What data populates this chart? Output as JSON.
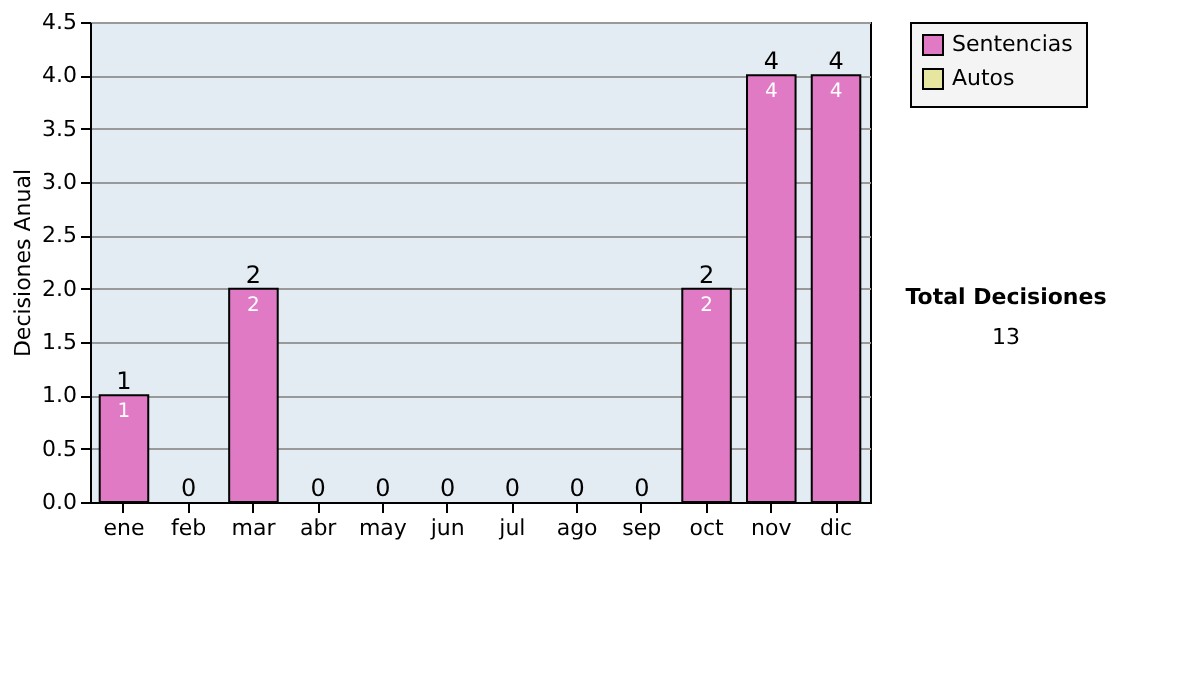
{
  "chart_data": {
    "type": "bar",
    "ylabel": "Decisiones Anual",
    "categories": [
      "ene",
      "feb",
      "mar",
      "abr",
      "may",
      "jun",
      "jul",
      "ago",
      "sep",
      "oct",
      "nov",
      "dic"
    ],
    "series": [
      {
        "name": "Sentencias",
        "color": "#e07ac4",
        "values": [
          1,
          0,
          2,
          0,
          0,
          0,
          0,
          0,
          0,
          2,
          4,
          4
        ],
        "value_labels": [
          "1",
          null,
          "2",
          null,
          null,
          null,
          null,
          null,
          null,
          "2",
          "4",
          "4"
        ]
      },
      {
        "name": "Autos",
        "color": "#e6e6a0",
        "values": [
          0,
          0,
          0,
          0,
          0,
          0,
          0,
          0,
          0,
          0,
          0,
          0
        ]
      }
    ],
    "stacked": true,
    "totals": [
      "1",
      "0",
      "2",
      "0",
      "0",
      "0",
      "0",
      "0",
      "0",
      "2",
      "4",
      "4"
    ],
    "ylim": [
      0,
      4.5
    ],
    "yticks": [
      {
        "value": 0,
        "label": "0.0"
      },
      {
        "value": 0.5,
        "label": "0.5"
      },
      {
        "value": 1,
        "label": "1.0"
      },
      {
        "value": 1.5,
        "label": "1.5"
      },
      {
        "value": 2,
        "label": "2.0"
      },
      {
        "value": 2.5,
        "label": "2.5"
      },
      {
        "value": 3,
        "label": "3.0"
      },
      {
        "value": 3.5,
        "label": "3.5"
      },
      {
        "value": 4,
        "label": "4.0"
      },
      {
        "value": 4.5,
        "label": "4.5"
      }
    ],
    "grid": "y",
    "legend": "right",
    "annotations": [
      "Total Decisiones",
      "13"
    ]
  }
}
